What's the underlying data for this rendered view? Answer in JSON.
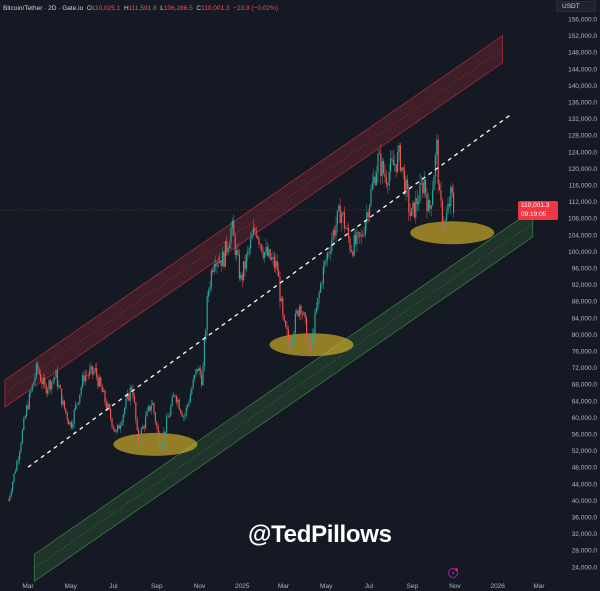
{
  "header": {
    "symbol": "Bitcoin/Tether · 2D · Gate.io",
    "o_label": "O",
    "o": "110,025.1",
    "h_label": "H",
    "h": "111,591.8",
    "l_label": "L",
    "l": "106,286.5",
    "c_label": "C",
    "c": "110,001.3",
    "change": "−23.8 (−0.02%)"
  },
  "currency_label": "USDT",
  "last_price": {
    "value": "110,001.3",
    "countdown": "09:19:05"
  },
  "watermark": "@TedPillows",
  "icons": {
    "alert": "lightning-icon"
  },
  "colors": {
    "background": "#151924",
    "up": "#26a69a",
    "down": "#ef5350",
    "resistance_band": "#f23645",
    "support_band": "#4caf50",
    "highlight": "#e6c229",
    "midline": "#ffffff"
  },
  "chart_data": {
    "type": "candlestick",
    "interval": "2D",
    "grid": false,
    "y_scale": "linear",
    "ylim": [
      22000,
      158000
    ],
    "y_ticks": [
      "156,000.0",
      "152,000.0",
      "148,000.0",
      "144,000.0",
      "140,000.0",
      "136,000.0",
      "132,000.0",
      "128,000.0",
      "124,000.0",
      "120,000.0",
      "116,000.0",
      "112,000.0",
      "108,000.0",
      "104,000.0",
      "100,000.0",
      "96,000.0",
      "92,000.0",
      "88,000.0",
      "84,000.0",
      "80,000.0",
      "76,000.0",
      "72,000.0",
      "68,000.0",
      "64,000.0",
      "60,000.0",
      "56,000.0",
      "52,000.0",
      "48,000.0",
      "44,000.0",
      "40,000.0",
      "36,000.0",
      "32,000.0",
      "28,000.0",
      "24,000.0"
    ],
    "x_ticks": [
      {
        "label": "Mar",
        "date": "2024-03-01"
      },
      {
        "label": "May",
        "date": "2024-05-01"
      },
      {
        "label": "Jul",
        "date": "2024-07-01"
      },
      {
        "label": "Sep",
        "date": "2024-09-01"
      },
      {
        "label": "Nov",
        "date": "2024-11-01"
      },
      {
        "label": "2025",
        "date": "2025-01-01"
      },
      {
        "label": "Mar",
        "date": "2025-03-01"
      },
      {
        "label": "May",
        "date": "2025-05-01"
      },
      {
        "label": "Jul",
        "date": "2025-07-01"
      },
      {
        "label": "Sep",
        "date": "2025-09-01"
      },
      {
        "label": "Nov",
        "date": "2025-11-01"
      },
      {
        "label": "2026",
        "date": "2026-01-01"
      },
      {
        "label": "Mar",
        "date": "2026-03-01"
      }
    ],
    "close_path": [
      [
        "2024-02-02",
        40000
      ],
      [
        "2024-02-15",
        50000
      ],
      [
        "2024-02-28",
        62000
      ],
      [
        "2024-03-14",
        72000
      ],
      [
        "2024-03-25",
        67000
      ],
      [
        "2024-04-10",
        70000
      ],
      [
        "2024-04-20",
        63000
      ],
      [
        "2024-05-01",
        58000
      ],
      [
        "2024-05-20",
        70000
      ],
      [
        "2024-06-05",
        71000
      ],
      [
        "2024-06-25",
        61000
      ],
      [
        "2024-07-05",
        56000
      ],
      [
        "2024-07-28",
        68000
      ],
      [
        "2024-08-05",
        54000
      ],
      [
        "2024-08-25",
        64000
      ],
      [
        "2024-09-06",
        53000
      ],
      [
        "2024-09-27",
        66000
      ],
      [
        "2024-10-10",
        60000
      ],
      [
        "2024-10-29",
        72000
      ],
      [
        "2024-11-05",
        69000
      ],
      [
        "2024-11-13",
        90000
      ],
      [
        "2024-11-22",
        99000
      ],
      [
        "2024-12-05",
        98000
      ],
      [
        "2024-12-17",
        106000
      ],
      [
        "2024-12-30",
        93000
      ],
      [
        "2025-01-20",
        106000
      ],
      [
        "2025-02-01",
        100000
      ],
      [
        "2025-02-20",
        96000
      ],
      [
        "2025-03-01",
        82000
      ],
      [
        "2025-03-10",
        78000
      ],
      [
        "2025-03-25",
        88000
      ],
      [
        "2025-04-08",
        76000
      ],
      [
        "2025-04-25",
        94000
      ],
      [
        "2025-05-10",
        104000
      ],
      [
        "2025-05-22",
        110000
      ],
      [
        "2025-06-05",
        101000
      ],
      [
        "2025-06-20",
        103000
      ],
      [
        "2025-07-14",
        122000
      ],
      [
        "2025-07-25",
        118000
      ],
      [
        "2025-08-14",
        123000
      ],
      [
        "2025-08-30",
        108000
      ],
      [
        "2025-09-18",
        117000
      ],
      [
        "2025-09-25",
        109000
      ],
      [
        "2025-10-06",
        125000
      ],
      [
        "2025-10-10",
        112000
      ],
      [
        "2025-10-17",
        106000
      ],
      [
        "2025-10-27",
        114000
      ],
      [
        "2025-10-30",
        110001.3
      ]
    ],
    "last_price": 110001.3,
    "drawings": {
      "resistance_channel": {
        "start": [
          "2024-01-28",
          69000
        ],
        "end": [
          "2026-01-08",
          152000
        ]
      },
      "support_channel": {
        "start": [
          "2024-03-10",
          27000
        ],
        "end": [
          "2026-02-20",
          110000
        ]
      },
      "midline_dashed": {
        "start": [
          "2024-03-01",
          48000
        ],
        "end": [
          "2026-01-20",
          133000
        ]
      },
      "highlight_zones": [
        {
          "date": "2024-08-30",
          "price": 53500
        },
        {
          "date": "2025-04-10",
          "price": 77500
        },
        {
          "date": "2025-10-28",
          "price": 104500
        }
      ]
    }
  }
}
